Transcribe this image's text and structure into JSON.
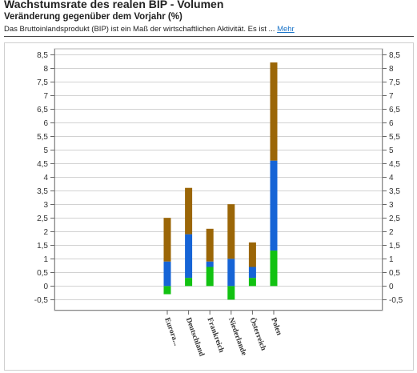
{
  "header": {
    "title": "Wachstumsrate des realen BIP - Volumen",
    "subtitle": "Veränderung gegenüber dem Vorjahr (%)",
    "description": "Das Bruttoinlandsprodukt (BIP) ist ein Maß der wirtschaftlichen Aktivität. Es ist ...",
    "more_link": "Mehr"
  },
  "chart_data": {
    "type": "bar",
    "stacked": true,
    "categories": [
      "Eurora...",
      "Deutschland",
      "Frankreich",
      "Niederlande",
      "Österreich",
      "Polen"
    ],
    "series": [
      {
        "color": "#12c212",
        "values": [
          -0.3,
          0.3,
          0.7,
          -0.5,
          0.3,
          1.3
        ]
      },
      {
        "color": "#1664d6",
        "values": [
          0.9,
          1.6,
          0.2,
          1.0,
          0.4,
          3.3
        ]
      },
      {
        "color": "#9b6607",
        "values": [
          1.6,
          1.7,
          1.2,
          2.0,
          0.9,
          3.6
        ]
      }
    ],
    "totals": [
      2.5,
      3.6,
      2.1,
      3.0,
      1.6,
      8.2
    ],
    "ylim": [
      -0.9,
      8.7
    ],
    "yticks": [
      "8,5",
      "8",
      "7,5",
      "7",
      "6,5",
      "6",
      "5,5",
      "5",
      "4,5",
      "4",
      "3,5",
      "3",
      "2,5",
      "2",
      "1,5",
      "1",
      "0,5",
      "0",
      "-0,5"
    ],
    "ytick_values": [
      8.5,
      8,
      7.5,
      7,
      6.5,
      6,
      5.5,
      5,
      4.5,
      4,
      3.5,
      3,
      2.5,
      2,
      1.5,
      1,
      0.5,
      0,
      -0.5
    ],
    "grid": true,
    "legend": "none",
    "xlabel": "",
    "ylabel": ""
  }
}
